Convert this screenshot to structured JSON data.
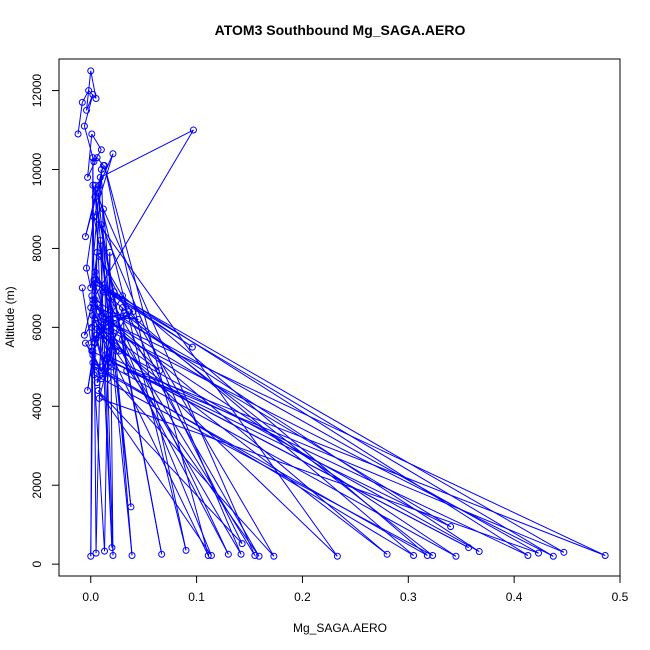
{
  "chart_data": {
    "type": "line",
    "title": "ATOM3 Southbound Mg_SAGA.AERO",
    "xlabel": "Mg_SAGA.AERO",
    "ylabel": "Altitude (m)",
    "xlim": [
      -0.03,
      0.5
    ],
    "ylim": [
      -300,
      12800
    ],
    "xticks": [
      0.0,
      0.1,
      0.2,
      0.3,
      0.4,
      0.5
    ],
    "xtick_labels": [
      "0.0",
      "0.1",
      "0.2",
      "0.3",
      "0.4",
      "0.5"
    ],
    "yticks": [
      0,
      2000,
      4000,
      6000,
      8000,
      10000,
      12000
    ],
    "ytick_labels": [
      "0",
      "2000",
      "4000",
      "6000",
      "8000",
      "10000",
      "12000"
    ],
    "grid": false,
    "legend": "none",
    "line_color": "#0000ff",
    "marker": "open-circle",
    "series": [
      {
        "x": [
          -0.012,
          -0.008,
          -0.002,
          0.005,
          0.0,
          -0.004,
          0.002,
          -0.006,
          0.003,
          0.01,
          0.001,
          -0.003,
          0.006,
          0.012,
          0.004,
          -0.005,
          0.008,
          0.021,
          0.003,
          -0.004,
          0.0,
          0.009,
          0.097,
          0.002,
          -0.006,
          0.004,
          0.006,
          0.001,
          0.01,
          0.045,
          0.0,
          0.024,
          0.003,
          0.006,
          0.008,
          0.28,
          0.001,
          0.004,
          0.002,
          0.305,
          0.012,
          -0.003,
          0.005,
          0.016,
          0.022,
          0.002,
          0.003,
          0.323,
          0.034,
          -0.005,
          0.01,
          0.001,
          0.357,
          0.016,
          0.01,
          0.004,
          0.318,
          0.03,
          0.005,
          0.013,
          0.015,
          0.34,
          0.014,
          0.006,
          0.02,
          0.345,
          0.002,
          0.01,
          0.027,
          0.367,
          0.004,
          0.008,
          0.02,
          0.486,
          0.012,
          0.036,
          0.014,
          0.413,
          0.004,
          0.04,
          0.011,
          0.437,
          0.004,
          0.096,
          0.013,
          0.447,
          0.034,
          0.03,
          0.008,
          0.423,
          0.002,
          0.065,
          0.008,
          0.233,
          0.003,
          0.022,
          0.011,
          0.173,
          0.008,
          0.143,
          0.007,
          0.114,
          0.03,
          0.155,
          0.002,
          0.067,
          0.01,
          0.142,
          0.019,
          0.13,
          0.004,
          0.159,
          0.005,
          0.111,
          0.013,
          0.09,
          0.007,
          0.038,
          0.009,
          0.02,
          0.004,
          0.039,
          0.012,
          0.005,
          0.002,
          0.0,
          0.002,
          0.013,
          0.018,
          0.021,
          0.01,
          0.001,
          -0.008
        ],
        "y": [
          10900,
          11700,
          12000,
          11800,
          12500,
          11500,
          11900,
          11100,
          10200,
          10500,
          10900,
          9800,
          10300,
          10100,
          9300,
          8300,
          9600,
          10400,
          8800,
          7500,
          7000,
          9800,
          11000,
          6700,
          5800,
          6200,
          7900,
          6800,
          6300,
          6200,
          6500,
          5400,
          7200,
          6600,
          6400,
          250,
          6000,
          5600,
          5100,
          220,
          6900,
          4400,
          5800,
          4700,
          6900,
          5300,
          4800,
          220,
          6300,
          5600,
          4900,
          5400,
          420,
          5200,
          4700,
          5000,
          220,
          6800,
          5700,
          4900,
          5200,
          950,
          6200,
          4600,
          5000,
          200,
          6300,
          5800,
          5400,
          320,
          6700,
          5900,
          5100,
          220,
          6200,
          6400,
          5300,
          220,
          7200,
          6400,
          6000,
          200,
          7100,
          5500,
          7000,
          300,
          4900,
          6500,
          4200,
          280,
          6600,
          4900,
          6000,
          200,
          8800,
          6100,
          5000,
          200,
          7800,
          520,
          4400,
          220,
          5700,
          220,
          9600,
          250,
          8600,
          250,
          5900,
          250,
          7400,
          200,
          6100,
          220,
          10100,
          350,
          9400,
          1450,
          8200,
          420,
          9600,
          220,
          9000,
          280,
          10300,
          200,
          5400,
          330,
          7900,
          220,
          10000,
          5500,
          7000
        ]
      }
    ]
  }
}
